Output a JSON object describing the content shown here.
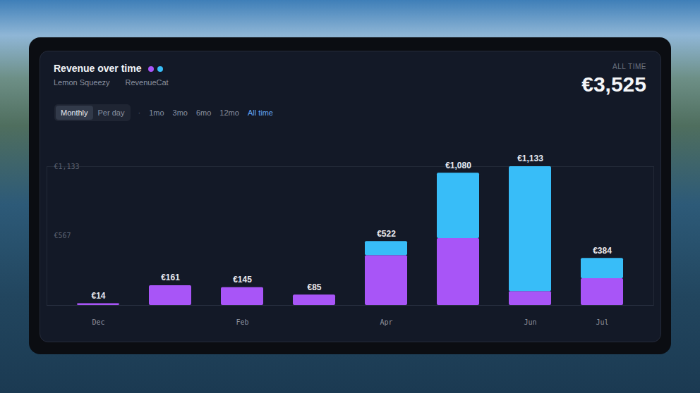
{
  "header": {
    "summary_label": "ALL TIME",
    "summary_value": "€3,525"
  },
  "controls": {
    "views": [
      "Monthly",
      "Per day"
    ],
    "active_view": "Monthly",
    "separator": "·",
    "ranges": [
      "1mo",
      "3mo",
      "6mo",
      "12mo",
      "All time"
    ],
    "active_range": "All time"
  },
  "chart_data": {
    "type": "bar",
    "title": "Revenue over time",
    "stacked": true,
    "data_labels": true,
    "legend": "top-left",
    "grid": false,
    "categories": [
      "Dec",
      null,
      "Feb",
      null,
      "Apr",
      null,
      "Jun",
      "Jul"
    ],
    "series": [
      {
        "name": "Lemon Squeezy",
        "color": "#a855f7",
        "values": [
          14,
          161,
          145,
          85,
          407,
          546,
          114,
          218
        ]
      },
      {
        "name": "RevenueCat",
        "color": "#38bdf8",
        "values": [
          0,
          0,
          0,
          0,
          115,
          534,
          1019,
          166
        ]
      }
    ],
    "totals": [
      14,
      161,
      145,
      85,
      522,
      1080,
      1133,
      384
    ],
    "total_labels": [
      "€14",
      "€161",
      "€145",
      "€85",
      "€522",
      "€1,080",
      "€1,133",
      "€384"
    ],
    "ylim": [
      0,
      1133
    ],
    "yticks": [
      {
        "value": 567,
        "label": "€567"
      },
      {
        "value": 1133,
        "label": "€1,133"
      }
    ]
  }
}
